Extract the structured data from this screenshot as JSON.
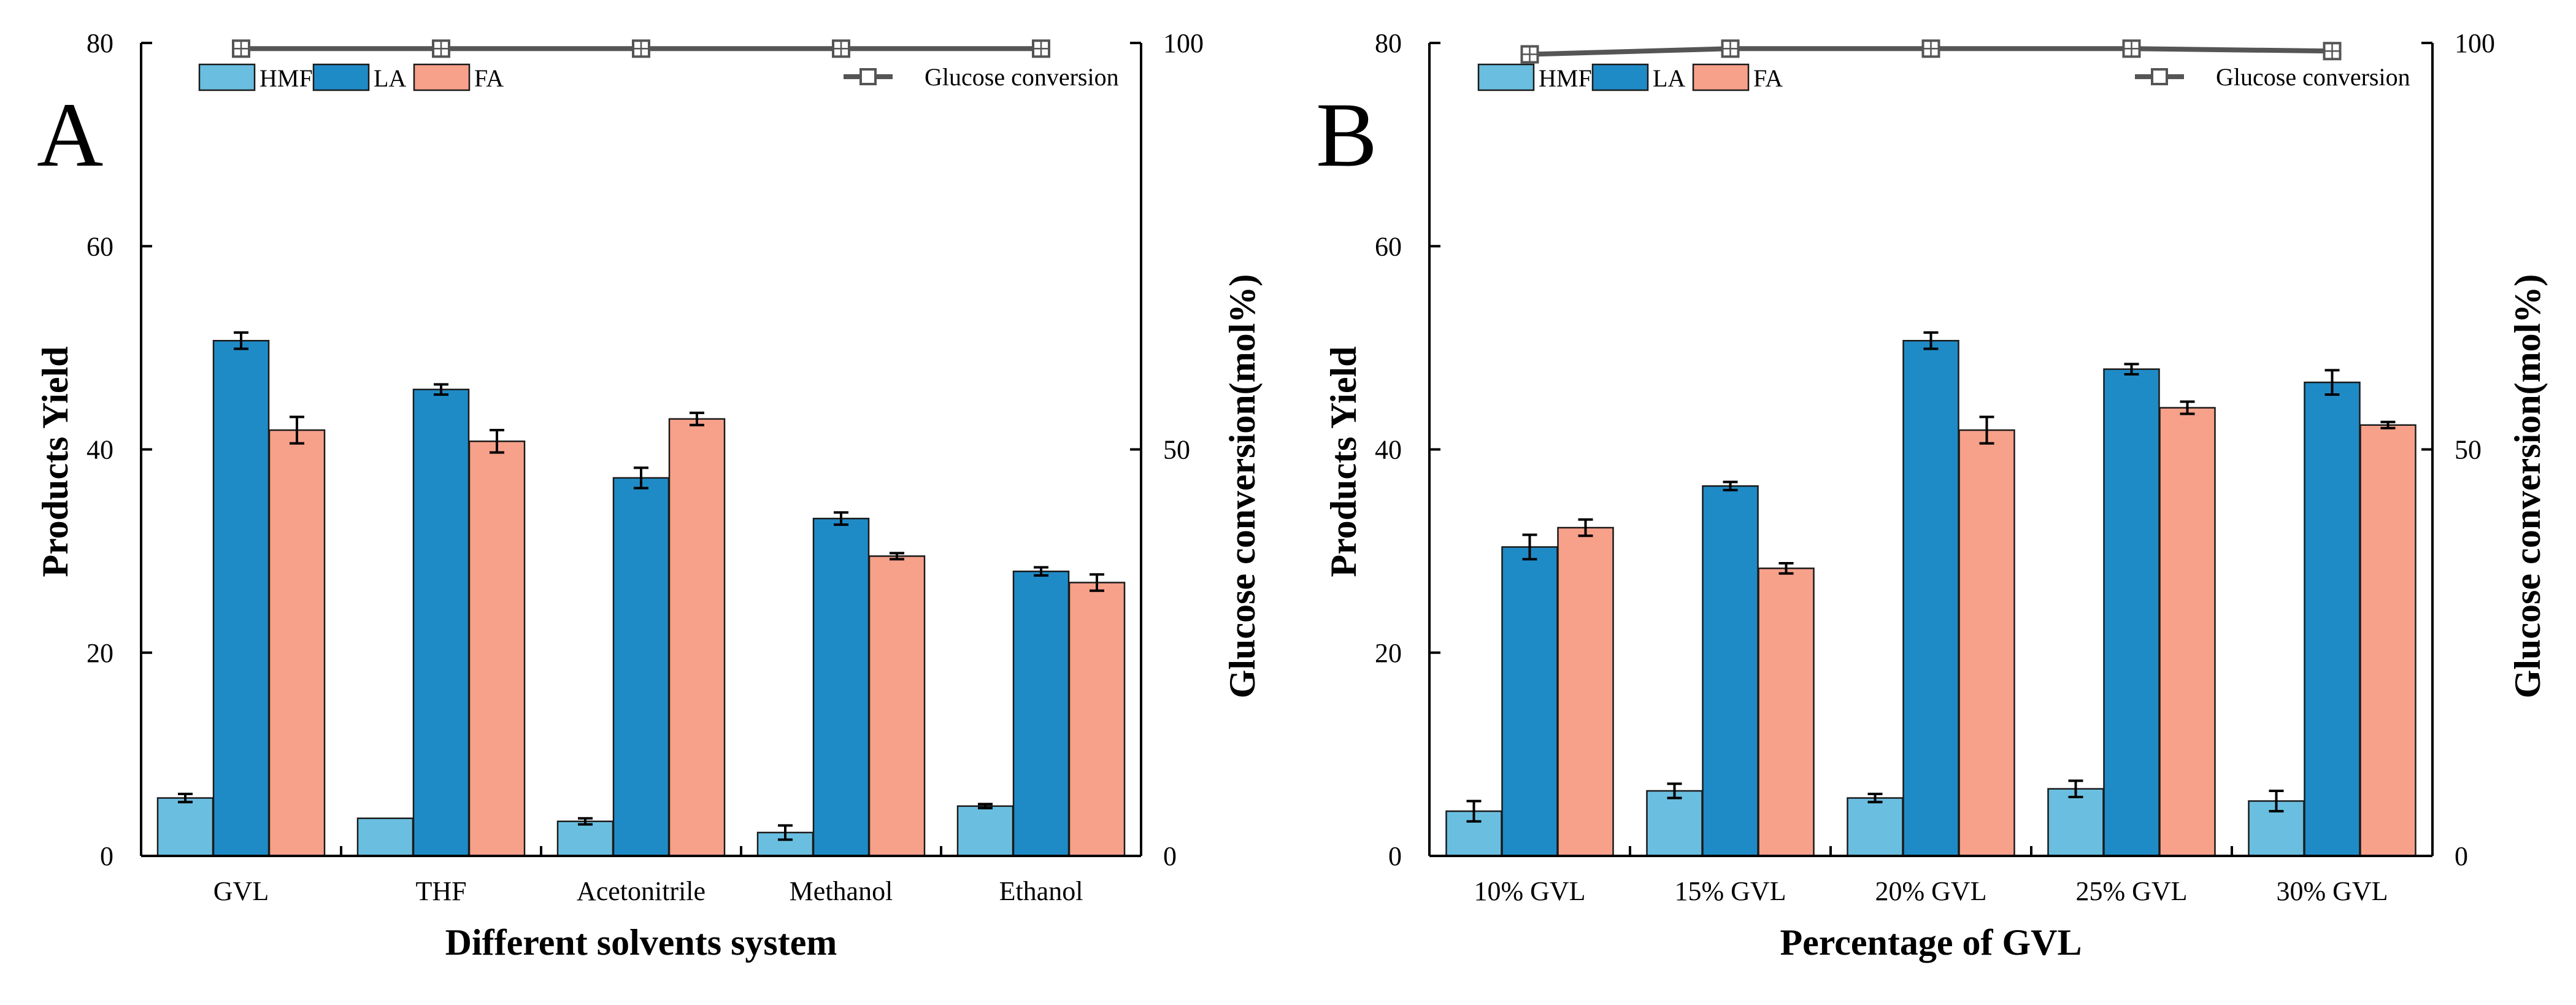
{
  "colors": {
    "HMF": "#6abfe0",
    "LA": "#1f8bc6",
    "FA": "#f7a18a",
    "glucose": "#555555"
  },
  "chart_data": [
    {
      "panel": "A",
      "type": "bar",
      "title": "",
      "xlabel": "Different solvents system",
      "ylabel": "Products Yield",
      "y2label": "Glucose conversion(mol%)",
      "ylim": [
        0,
        80
      ],
      "yticks": [
        0,
        20,
        40,
        60,
        80
      ],
      "y2lim": [
        0,
        100
      ],
      "y2ticks": [
        0,
        50,
        100
      ],
      "categories": [
        "GVL",
        "THF",
        "Acetonitrile",
        "Methanol",
        "Ethanol"
      ],
      "legend_position": "top",
      "series": [
        {
          "name": "HMF",
          "values": [
            5.7,
            3.7,
            3.4,
            2.3,
            4.9
          ],
          "errors": [
            0.4,
            0.0,
            0.3,
            0.7,
            0.2
          ]
        },
        {
          "name": "LA",
          "values": [
            50.7,
            45.9,
            37.2,
            33.2,
            28.0
          ],
          "errors": [
            0.8,
            0.5,
            1.0,
            0.6,
            0.4
          ]
        },
        {
          "name": "FA",
          "values": [
            41.9,
            40.8,
            43.0,
            29.5,
            26.9
          ],
          "errors": [
            1.3,
            1.1,
            0.6,
            0.3,
            0.8
          ]
        }
      ],
      "line_series": {
        "name": "Glucose conversion",
        "axis": "right",
        "values": [
          99.3,
          99.3,
          99.3,
          99.3,
          99.3
        ]
      }
    },
    {
      "panel": "B",
      "type": "bar",
      "title": "",
      "xlabel": "Percentage of GVL",
      "ylabel": "Products Yield",
      "y2label": "Glucose conversion(mol%)",
      "ylim": [
        0,
        80
      ],
      "yticks": [
        0,
        20,
        40,
        60,
        80
      ],
      "y2lim": [
        0,
        100
      ],
      "y2ticks": [
        0,
        50,
        100
      ],
      "categories": [
        "10% GVL",
        "15% GVL",
        "20% GVL",
        "25% GVL",
        "30% GVL"
      ],
      "legend_position": "top",
      "series": [
        {
          "name": "HMF",
          "values": [
            4.4,
            6.4,
            5.7,
            6.6,
            5.4
          ],
          "errors": [
            1.0,
            0.7,
            0.4,
            0.8,
            1.0
          ]
        },
        {
          "name": "LA",
          "values": [
            30.4,
            36.4,
            50.7,
            47.9,
            46.6
          ],
          "errors": [
            1.2,
            0.4,
            0.8,
            0.5,
            1.2
          ]
        },
        {
          "name": "FA",
          "values": [
            32.3,
            28.3,
            41.9,
            44.1,
            42.4
          ],
          "errors": [
            0.8,
            0.5,
            1.3,
            0.6,
            0.3
          ]
        }
      ],
      "line_series": {
        "name": "Glucose conversion",
        "axis": "right",
        "values": [
          98.6,
          99.3,
          99.3,
          99.3,
          99.0
        ]
      }
    }
  ]
}
